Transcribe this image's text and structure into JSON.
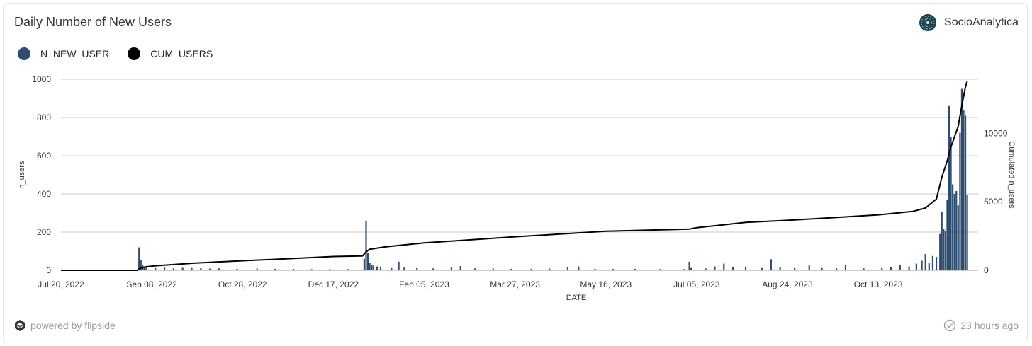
{
  "header": {
    "title": "Daily Number of New Users",
    "brand": "SocioAnalytica"
  },
  "footer": {
    "powered_by": "powered by flipside",
    "updated": "23 hours ago"
  },
  "colors": {
    "bar": "#2d4d6f",
    "line": "#000000",
    "grid": "#c8c8c8"
  },
  "chart_data": {
    "type": "bar+line",
    "title": "Daily Number of New Users",
    "xlabel": "DATE",
    "ylabel": "n_users",
    "y2label": "Cumulated n_users",
    "ylim": [
      0,
      1000
    ],
    "y2lim": [
      0,
      13950
    ],
    "xlim": [
      "2022-07-20",
      "2023-12-07"
    ],
    "yticks": [
      0,
      200,
      400,
      600,
      800,
      1000
    ],
    "y2ticks": [
      0,
      5000,
      10000
    ],
    "xticks": [
      "Jul 20, 2022",
      "Sep 08, 2022",
      "Oct 28, 2022",
      "Dec 17, 2022",
      "Feb 05, 2023",
      "Mar 27, 2023",
      "May 16, 2023",
      "Jul 05, 2023",
      "Aug 24, 2023",
      "Oct 13, 2023"
    ],
    "grid": true,
    "legend_position": "top-left",
    "series": [
      {
        "name": "N_NEW_USER",
        "kind": "bar",
        "axis": "left",
        "points": [
          [
            "2022-09-01",
            120
          ],
          [
            "2022-09-02",
            55
          ],
          [
            "2022-09-03",
            30
          ],
          [
            "2022-09-04",
            20
          ],
          [
            "2022-09-05",
            15
          ],
          [
            "2022-09-10",
            12
          ],
          [
            "2022-09-15",
            14
          ],
          [
            "2022-09-20",
            10
          ],
          [
            "2022-09-25",
            13
          ],
          [
            "2022-09-30",
            12
          ],
          [
            "2022-10-05",
            11
          ],
          [
            "2022-10-10",
            9
          ],
          [
            "2022-10-15",
            10
          ],
          [
            "2022-10-25",
            8
          ],
          [
            "2022-11-05",
            9
          ],
          [
            "2022-11-15",
            8
          ],
          [
            "2022-11-25",
            7
          ],
          [
            "2022-12-05",
            6
          ],
          [
            "2022-12-15",
            6
          ],
          [
            "2022-12-25",
            6
          ],
          [
            "2023-01-03",
            60
          ],
          [
            "2023-01-04",
            260
          ],
          [
            "2023-01-05",
            90
          ],
          [
            "2023-01-06",
            40
          ],
          [
            "2023-01-07",
            30
          ],
          [
            "2023-01-08",
            25
          ],
          [
            "2023-01-10",
            20
          ],
          [
            "2023-01-12",
            15
          ],
          [
            "2023-01-18",
            12
          ],
          [
            "2023-01-22",
            45
          ],
          [
            "2023-01-25",
            14
          ],
          [
            "2023-02-01",
            12
          ],
          [
            "2023-02-10",
            10
          ],
          [
            "2023-02-20",
            14
          ],
          [
            "2023-02-25",
            22
          ],
          [
            "2023-03-05",
            10
          ],
          [
            "2023-03-15",
            9
          ],
          [
            "2023-03-25",
            8
          ],
          [
            "2023-04-05",
            8
          ],
          [
            "2023-04-15",
            9
          ],
          [
            "2023-04-25",
            18
          ],
          [
            "2023-05-01",
            20
          ],
          [
            "2023-05-10",
            8
          ],
          [
            "2023-05-20",
            7
          ],
          [
            "2023-06-01",
            8
          ],
          [
            "2023-06-15",
            7
          ],
          [
            "2023-06-28",
            6
          ],
          [
            "2023-07-01",
            45
          ],
          [
            "2023-07-02",
            12
          ],
          [
            "2023-07-10",
            10
          ],
          [
            "2023-07-15",
            20
          ],
          [
            "2023-07-20",
            35
          ],
          [
            "2023-07-25",
            18
          ],
          [
            "2023-08-01",
            15
          ],
          [
            "2023-08-10",
            12
          ],
          [
            "2023-08-15",
            58
          ],
          [
            "2023-08-20",
            14
          ],
          [
            "2023-08-28",
            12
          ],
          [
            "2023-09-05",
            25
          ],
          [
            "2023-09-12",
            12
          ],
          [
            "2023-09-20",
            10
          ],
          [
            "2023-09-25",
            28
          ],
          [
            "2023-10-05",
            10
          ],
          [
            "2023-10-15",
            12
          ],
          [
            "2023-10-20",
            15
          ],
          [
            "2023-10-25",
            28
          ],
          [
            "2023-10-30",
            20
          ],
          [
            "2023-11-03",
            35
          ],
          [
            "2023-11-06",
            50
          ],
          [
            "2023-11-08",
            85
          ],
          [
            "2023-11-10",
            40
          ],
          [
            "2023-11-12",
            75
          ],
          [
            "2023-11-14",
            70
          ],
          [
            "2023-11-16",
            190
          ],
          [
            "2023-11-17",
            305
          ],
          [
            "2023-11-18",
            215
          ],
          [
            "2023-11-19",
            205
          ],
          [
            "2023-11-20",
            370
          ],
          [
            "2023-11-21",
            860
          ],
          [
            "2023-11-22",
            700
          ],
          [
            "2023-11-23",
            450
          ],
          [
            "2023-11-24",
            400
          ],
          [
            "2023-11-25",
            415
          ],
          [
            "2023-11-26",
            340
          ],
          [
            "2023-11-27",
            720
          ],
          [
            "2023-11-28",
            950
          ],
          [
            "2023-11-29",
            840
          ],
          [
            "2023-11-30",
            810
          ],
          [
            "2023-12-01",
            395
          ]
        ]
      },
      {
        "name": "CUM_USERS",
        "kind": "line",
        "axis": "right",
        "points": [
          [
            "2022-07-20",
            0
          ],
          [
            "2022-08-31",
            0
          ],
          [
            "2022-09-01",
            120
          ],
          [
            "2022-09-05",
            260
          ],
          [
            "2022-09-10",
            330
          ],
          [
            "2022-10-01",
            520
          ],
          [
            "2022-10-28",
            700
          ],
          [
            "2022-11-15",
            800
          ],
          [
            "2022-12-17",
            1010
          ],
          [
            "2023-01-02",
            1050
          ],
          [
            "2023-01-04",
            1350
          ],
          [
            "2023-01-06",
            1540
          ],
          [
            "2023-01-15",
            1720
          ],
          [
            "2023-02-05",
            2000
          ],
          [
            "2023-03-27",
            2450
          ],
          [
            "2023-05-16",
            2850
          ],
          [
            "2023-07-01",
            3010
          ],
          [
            "2023-07-05",
            3110
          ],
          [
            "2023-08-01",
            3500
          ],
          [
            "2023-08-24",
            3650
          ],
          [
            "2023-09-25",
            3900
          ],
          [
            "2023-10-13",
            4050
          ],
          [
            "2023-11-01",
            4300
          ],
          [
            "2023-11-08",
            4550
          ],
          [
            "2023-11-14",
            5200
          ],
          [
            "2023-11-17",
            6800
          ],
          [
            "2023-11-20",
            8000
          ],
          [
            "2023-11-22",
            9000
          ],
          [
            "2023-11-26",
            10500
          ],
          [
            "2023-11-28",
            12000
          ],
          [
            "2023-11-30",
            13400
          ],
          [
            "2023-12-01",
            13800
          ]
        ]
      }
    ]
  }
}
